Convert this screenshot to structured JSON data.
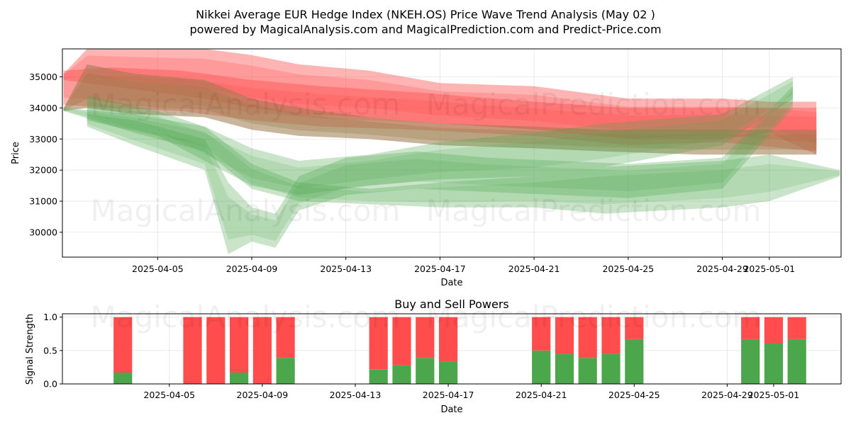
{
  "header": {
    "title_line1": "Nikkei Average EUR Hedge Index (NKEH.OS) Price Wave Trend Analysis (May 02 )",
    "title_line2": "powered by MagicalAnalysis.com and MagicalPrediction.com and Predict-Price.com"
  },
  "watermarks": {
    "left": "MagicalAnalysis.com",
    "right": "MagicalPrediction.com"
  },
  "colors": {
    "green": "#4ca64c",
    "red": "#ff4c4c",
    "band_red": "#ff4c4c",
    "band_green": "#4ca64c",
    "grid": "#b0b0b0"
  },
  "chart_data": [
    {
      "type": "area",
      "title": "",
      "xlabel": "Date",
      "ylabel": "Price",
      "x_range": [
        "2025-04-01",
        "2025-05-04"
      ],
      "ylim": [
        29200,
        35900
      ],
      "x_ticks": [
        "2025-04-05",
        "2025-04-09",
        "2025-04-13",
        "2025-04-17",
        "2025-04-21",
        "2025-04-25",
        "2025-04-29",
        "2025-05-01"
      ],
      "y_ticks": [
        "30000",
        "31000",
        "32000",
        "33000",
        "34000",
        "35000"
      ],
      "grid": true,
      "series": [
        {
          "name": "red wave 1",
          "color": "red",
          "x": [
            "2025-04-01",
            "2025-04-02",
            "2025-04-05",
            "2025-04-07",
            "2025-04-09",
            "2025-04-11",
            "2025-04-14",
            "2025-04-17",
            "2025-04-21",
            "2025-04-25",
            "2025-04-29",
            "2025-05-01",
            "2025-05-03"
          ],
          "upper": [
            35100,
            35900,
            35900,
            35900,
            35700,
            35400,
            35200,
            34800,
            34700,
            34300,
            34300,
            34200,
            34200
          ],
          "lower": [
            34900,
            34800,
            34500,
            34300,
            34000,
            33800,
            33700,
            33500,
            33300,
            33000,
            33000,
            33200,
            32500
          ]
        },
        {
          "name": "red wave 2",
          "color": "red",
          "x": [
            "2025-04-01",
            "2025-04-03",
            "2025-04-06",
            "2025-04-09",
            "2025-04-12",
            "2025-04-16",
            "2025-04-21",
            "2025-04-25",
            "2025-04-29",
            "2025-05-03"
          ],
          "upper": [
            35200,
            35300,
            35200,
            34900,
            34700,
            34500,
            34200,
            34000,
            34000,
            34000
          ],
          "lower": [
            34100,
            34000,
            33900,
            33600,
            33400,
            33300,
            33100,
            32800,
            32900,
            32600
          ]
        },
        {
          "name": "brown wave",
          "color": "brown",
          "x": [
            "2025-04-01",
            "2025-04-02",
            "2025-04-04",
            "2025-04-07",
            "2025-04-09",
            "2025-04-11",
            "2025-04-14",
            "2025-04-17",
            "2025-04-21",
            "2025-04-24",
            "2025-04-28",
            "2025-05-03"
          ],
          "upper": [
            34000,
            35400,
            35100,
            34900,
            34300,
            34000,
            33700,
            33500,
            33400,
            33300,
            33300,
            33300
          ],
          "lower": [
            33900,
            34000,
            33800,
            33700,
            33300,
            33100,
            33000,
            32800,
            32700,
            32600,
            32500,
            32500
          ]
        },
        {
          "name": "green wave 1",
          "color": "green",
          "x": [
            "2025-04-01",
            "2025-04-04",
            "2025-04-07",
            "2025-04-09",
            "2025-04-11",
            "2025-04-14",
            "2025-04-17",
            "2025-04-21",
            "2025-04-24",
            "2025-04-29",
            "2025-05-01",
            "2025-05-04"
          ],
          "upper": [
            34000,
            33800,
            33400,
            32200,
            31600,
            31400,
            31600,
            31800,
            32100,
            32300,
            32500,
            32000
          ],
          "lower": [
            33900,
            33200,
            32600,
            31400,
            31000,
            30900,
            30800,
            30800,
            30600,
            30800,
            31000,
            31800
          ]
        },
        {
          "name": "green wave 2",
          "color": "green",
          "x": [
            "2025-04-02",
            "2025-04-04",
            "2025-04-07",
            "2025-04-08",
            "2025-04-09",
            "2025-04-10",
            "2025-04-11",
            "2025-04-13",
            "2025-04-16",
            "2025-04-19",
            "2025-04-22",
            "2025-04-25",
            "2025-04-29",
            "2025-05-02"
          ],
          "upper": [
            33800,
            33600,
            33000,
            31600,
            30800,
            30600,
            31800,
            32400,
            32600,
            32400,
            32300,
            32200,
            32400,
            34700
          ],
          "lower": [
            33400,
            32800,
            32000,
            29300,
            29700,
            29500,
            30700,
            31200,
            31400,
            31300,
            31200,
            31100,
            31400,
            34000
          ]
        },
        {
          "name": "green wave 3",
          "color": "green",
          "x": [
            "2025-04-02",
            "2025-04-05",
            "2025-04-07",
            "2025-04-09",
            "2025-04-11",
            "2025-04-14",
            "2025-04-17",
            "2025-04-21",
            "2025-04-24",
            "2025-04-29",
            "2025-05-02"
          ],
          "upper": [
            34400,
            33900,
            33400,
            32700,
            32300,
            32500,
            32900,
            33200,
            33500,
            33800,
            35000
          ],
          "lower": [
            33600,
            33100,
            32300,
            31500,
            31200,
            31500,
            31700,
            31800,
            32100,
            32800,
            34300
          ]
        }
      ]
    },
    {
      "type": "bar",
      "title": "Buy and Sell Powers",
      "xlabel": "Date",
      "ylabel": "Signal Strength",
      "ylim": [
        0,
        1.05
      ],
      "x_ticks": [
        "2025-04-05",
        "2025-04-09",
        "2025-04-13",
        "2025-04-17",
        "2025-04-21",
        "2025-04-25",
        "2025-04-29",
        "2025-05-01"
      ],
      "y_ticks": [
        "0.0",
        "0.5",
        "1.0"
      ],
      "categories": [
        "2025-04-03",
        "2025-04-06",
        "2025-04-07",
        "2025-04-08",
        "2025-04-09",
        "2025-04-10",
        "2025-04-14",
        "2025-04-15",
        "2025-04-16",
        "2025-04-17",
        "2025-04-21",
        "2025-04-22",
        "2025-04-23",
        "2025-04-24",
        "2025-04-25",
        "2025-04-30",
        "2025-05-01",
        "2025-05-02"
      ],
      "series": [
        {
          "name": "Buy",
          "color": "green",
          "values": [
            0.17,
            0,
            0,
            0.17,
            0,
            0.39,
            0.22,
            0.28,
            0.39,
            0.33,
            0.5,
            0.45,
            0.39,
            0.45,
            0.67,
            0.67,
            0.61,
            0.67
          ]
        },
        {
          "name": "Sell",
          "color": "red",
          "values": [
            0.83,
            1,
            1,
            0.83,
            1,
            0.61,
            0.78,
            0.72,
            0.61,
            0.67,
            0.5,
            0.55,
            0.61,
            0.55,
            0.33,
            0.33,
            0.39,
            0.33
          ]
        }
      ]
    }
  ]
}
